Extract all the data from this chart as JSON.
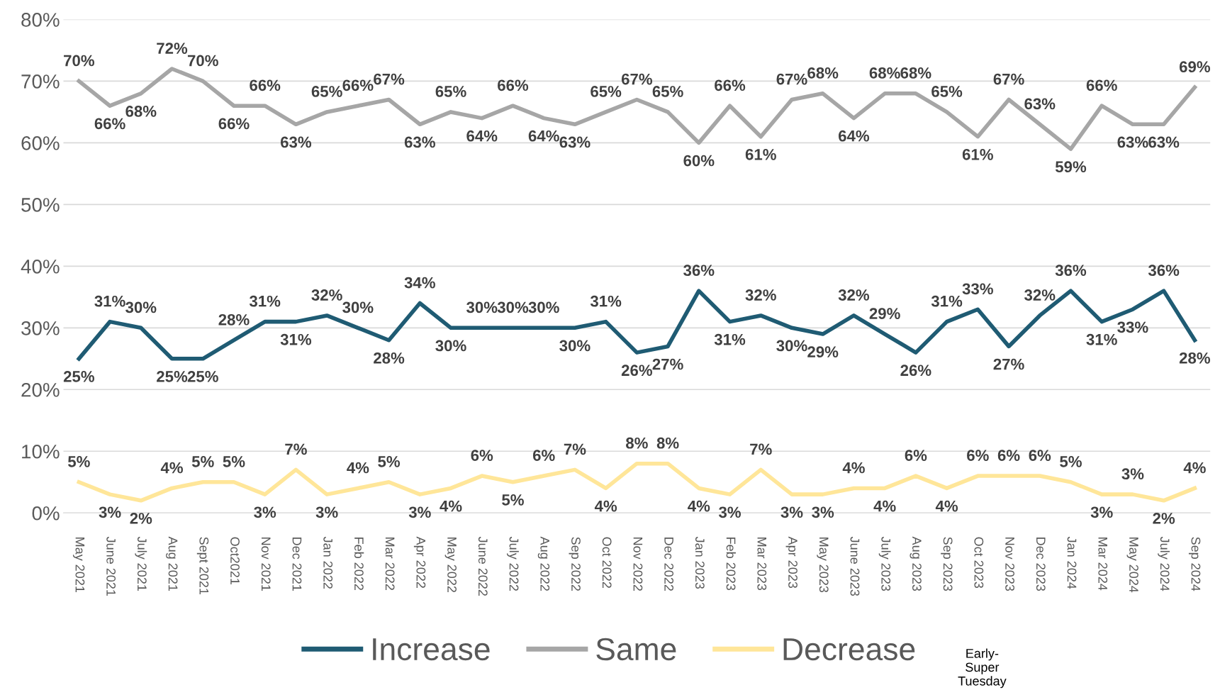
{
  "chart_data": {
    "type": "line",
    "categories": [
      "May 2021",
      "June 2021",
      "July 2021",
      "Aug 2021",
      "Sept 2021",
      "Oct2021",
      "Nov 2021",
      "Dec 2021",
      "Jan 2022",
      "Feb 2022",
      "Mar 2022",
      "Apr 2022",
      "May 2022",
      "June 2022",
      "July 2022",
      "Aug 2022",
      "Sep 2022",
      "Oct 2022",
      "Nov 2022",
      "Dec 2022",
      "Jan 2023",
      "Feb 2023",
      "Mar 2023",
      "Apr 2023",
      "May 2023",
      "June 2023",
      "July 2023",
      "Aug 2023",
      "Sep 2023",
      "Oct 2023",
      "Nov 2023",
      "Dec 2023",
      "Jan 2024",
      "Mar 2024",
      "May 2024",
      "July 2024",
      "Sep 2024"
    ],
    "series": [
      {
        "name": "Increase",
        "color": "#1f5b73",
        "values": [
          25,
          31,
          30,
          25,
          25,
          28,
          31,
          31,
          32,
          30,
          28,
          34,
          30,
          30,
          30,
          30,
          30,
          31,
          26,
          27,
          36,
          31,
          32,
          30,
          29,
          32,
          29,
          26,
          31,
          33,
          27,
          32,
          36,
          31,
          33,
          36,
          28
        ],
        "value_labels": [
          "25%",
          "31%",
          "30%",
          "25%",
          "25%",
          "28%",
          "31%",
          "31%",
          "32%",
          "30%",
          "28%",
          "34%",
          "30%",
          "30%",
          "30%",
          "30%",
          "30%",
          "31%",
          "26%",
          "27%",
          "36%",
          "31%",
          "32%",
          "30%",
          "29%",
          "32%",
          "29%",
          "26%",
          "31%",
          "33%",
          "27%",
          "32%",
          "36%",
          "31%",
          "33%",
          "36%",
          "28%"
        ]
      },
      {
        "name": "Same",
        "color": "#a6a6a6",
        "values": [
          70,
          66,
          68,
          72,
          70,
          66,
          66,
          63,
          65,
          66,
          67,
          63,
          65,
          64,
          66,
          64,
          63,
          65,
          67,
          65,
          60,
          66,
          61,
          67,
          68,
          64,
          68,
          68,
          65,
          61,
          67,
          63,
          59,
          66,
          63,
          63,
          69
        ],
        "value_labels": [
          "70%",
          "66%",
          "68%",
          "72%",
          "70%",
          "66%",
          "66%",
          "63%",
          "65%",
          "66%",
          "67%",
          "63%",
          "65%",
          "64%",
          "66%",
          "64%",
          "63%",
          "65%",
          "67%",
          "65%",
          "60%",
          "66%",
          "61%",
          "67%",
          "68%",
          "64%",
          "68%",
          "68%",
          "65%",
          "61%",
          "67%",
          "63%",
          "59%",
          "66%",
          "63%",
          "63%",
          "69%"
        ]
      },
      {
        "name": "Decrease",
        "color": "#ffe699",
        "values": [
          5,
          3,
          2,
          4,
          5,
          5,
          3,
          7,
          3,
          4,
          5,
          3,
          4,
          6,
          5,
          6,
          7,
          4,
          8,
          8,
          4,
          3,
          7,
          3,
          3,
          4,
          4,
          6,
          4,
          6,
          6,
          6,
          5,
          3,
          3,
          2,
          4
        ],
        "value_labels": [
          "5%",
          "3%",
          "2%",
          "4%",
          "5%",
          "5%",
          "3%",
          "7%",
          "3%",
          "4%",
          "5%",
          "3%",
          "4%",
          "6%",
          "5%",
          "6%",
          "7%",
          "4%",
          "8%",
          "8%",
          "4%",
          "3%",
          "7%",
          "3%",
          "3%",
          "4%",
          "4%",
          "6%",
          "4%",
          "6%",
          "6%",
          "6%",
          "5%",
          "3%",
          "3%",
          "2%",
          "4%"
        ]
      }
    ],
    "ylim": [
      0,
      80
    ],
    "yticks": [
      {
        "value": 0,
        "label": "0%"
      },
      {
        "value": 10,
        "label": "10%"
      },
      {
        "value": 20,
        "label": "20%"
      },
      {
        "value": 30,
        "label": "30%"
      },
      {
        "value": 40,
        "label": "40%"
      },
      {
        "value": 50,
        "label": "50%"
      },
      {
        "value": 60,
        "label": "60%"
      },
      {
        "value": 70,
        "label": "70%"
      },
      {
        "value": 80,
        "label": "80%"
      }
    ],
    "grid": "y",
    "legend": "bottom",
    "marker": "none",
    "line_style": "solid",
    "annotations": [
      "Early-\nSuper\nTuesday"
    ]
  }
}
